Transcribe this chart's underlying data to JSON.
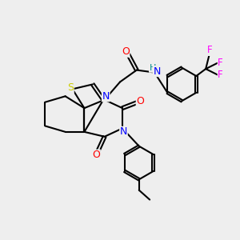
{
  "bg_color": "#eeeeee",
  "atom_colors": {
    "S": "#cccc00",
    "N": "#0000ff",
    "O": "#ff0000",
    "F": "#ff00ff",
    "H": "#008b8b",
    "C": "#000000"
  },
  "bond_color": "#000000",
  "bond_width": 1.5
}
